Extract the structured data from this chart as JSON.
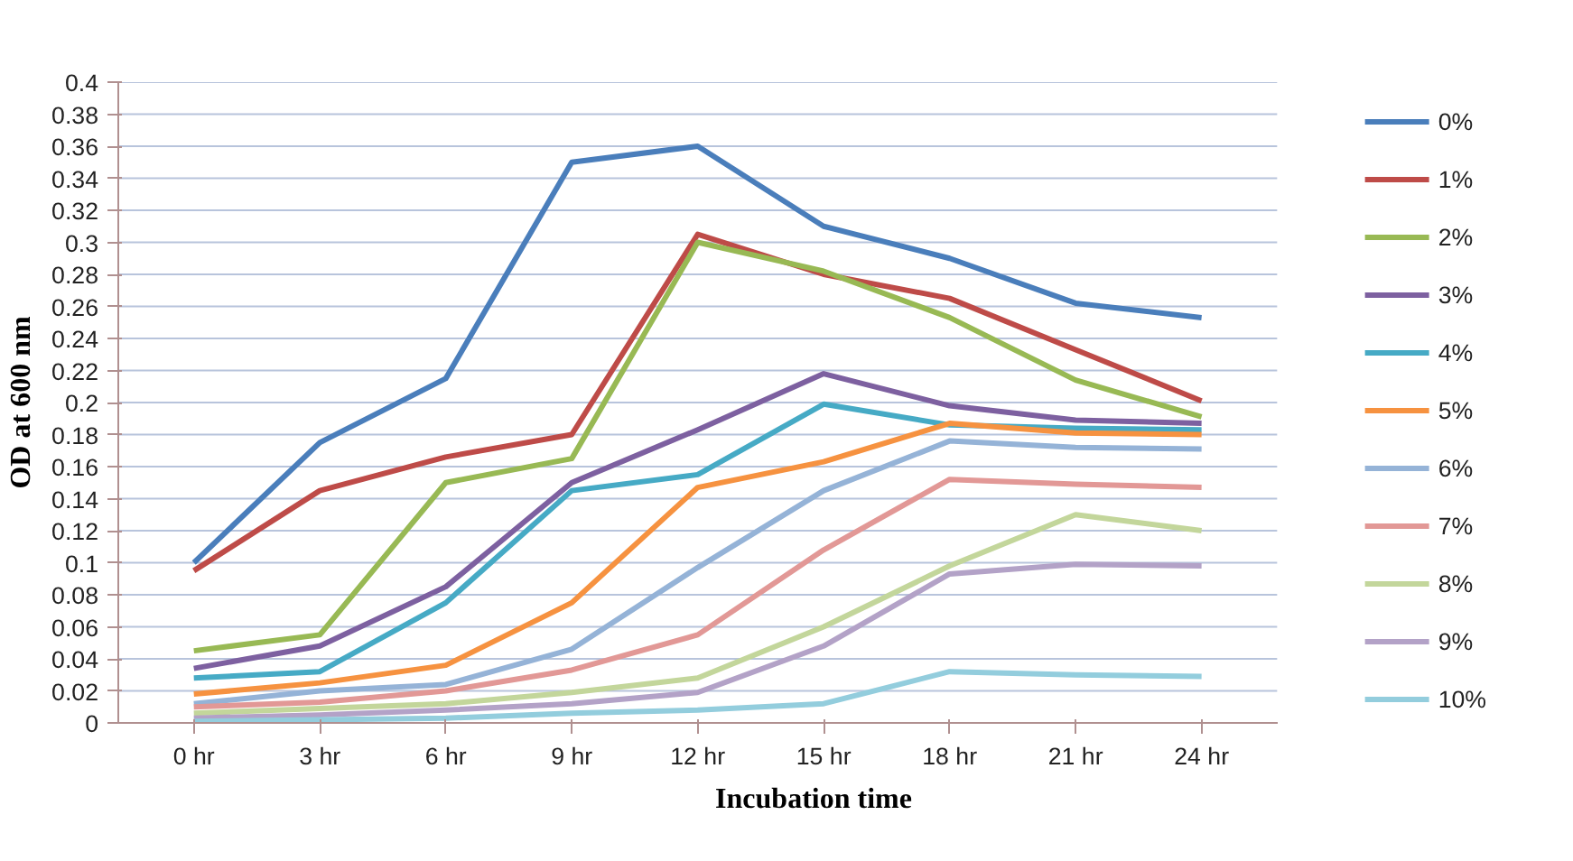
{
  "chart_data": {
    "type": "line",
    "xlabel": "Incubation time",
    "ylabel": "OD at 600 nm",
    "categories": [
      "0 hr",
      "3 hr",
      "6 hr",
      "9 hr",
      "12 hr",
      "15 hr",
      "18 hr",
      "21 hr",
      "24 hr"
    ],
    "ylim": [
      0,
      0.4
    ],
    "yticks": [
      0,
      0.02,
      0.04,
      0.06,
      0.08,
      0.1,
      0.12,
      0.14,
      0.16,
      0.18,
      0.2,
      0.22,
      0.24,
      0.26,
      0.28,
      0.3,
      0.32,
      0.34,
      0.36,
      0.38,
      0.4
    ],
    "grid": "y",
    "legend": "right",
    "marker": "none",
    "line_style": "solid",
    "series": [
      {
        "name": "0%",
        "color": "#4a7ebb",
        "values": [
          0.1,
          0.175,
          0.215,
          0.35,
          0.36,
          0.31,
          0.29,
          0.262,
          0.253
        ]
      },
      {
        "name": "1%",
        "color": "#be4b48",
        "values": [
          0.095,
          0.145,
          0.166,
          0.18,
          0.305,
          0.28,
          0.265,
          0.233,
          0.201
        ]
      },
      {
        "name": "2%",
        "color": "#98b954",
        "values": [
          0.045,
          0.055,
          0.15,
          0.165,
          0.3,
          0.282,
          0.253,
          0.214,
          0.191
        ]
      },
      {
        "name": "3%",
        "color": "#7d60a0",
        "values": [
          0.034,
          0.048,
          0.085,
          0.15,
          0.183,
          0.218,
          0.198,
          0.189,
          0.187
        ]
      },
      {
        "name": "4%",
        "color": "#46aac5",
        "values": [
          0.028,
          0.032,
          0.075,
          0.145,
          0.155,
          0.199,
          0.186,
          0.184,
          0.183
        ]
      },
      {
        "name": "5%",
        "color": "#f69240",
        "values": [
          0.018,
          0.025,
          0.036,
          0.075,
          0.147,
          0.163,
          0.187,
          0.181,
          0.18
        ]
      },
      {
        "name": "6%",
        "color": "#95b3d7",
        "values": [
          0.012,
          0.02,
          0.024,
          0.046,
          0.097,
          0.145,
          0.176,
          0.172,
          0.171
        ]
      },
      {
        "name": "7%",
        "color": "#e29896",
        "values": [
          0.01,
          0.013,
          0.02,
          0.033,
          0.055,
          0.108,
          0.152,
          0.149,
          0.147
        ]
      },
      {
        "name": "8%",
        "color": "#c3d69b",
        "values": [
          0.006,
          0.009,
          0.012,
          0.019,
          0.028,
          0.06,
          0.098,
          0.13,
          0.12
        ]
      },
      {
        "name": "9%",
        "color": "#b3a2c7",
        "values": [
          0.003,
          0.005,
          0.008,
          0.012,
          0.019,
          0.048,
          0.093,
          0.099,
          0.098
        ]
      },
      {
        "name": "10%",
        "color": "#93cddd",
        "values": [
          0.001,
          0.002,
          0.003,
          0.006,
          0.008,
          0.012,
          0.032,
          0.03,
          0.029
        ]
      }
    ]
  }
}
